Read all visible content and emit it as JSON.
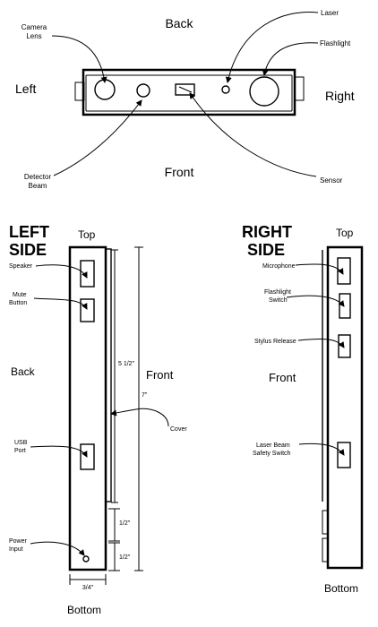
{
  "top_view": {
    "back": "Back",
    "front": "Front",
    "left": "Left",
    "right": "Right",
    "camera_lens": [
      "Camera",
      "Lens"
    ],
    "laser": "Laser",
    "flashlight": "Flashlight",
    "detector_beam": [
      "Detector",
      "Beam"
    ],
    "sensor": "Sensor"
  },
  "left_side": {
    "heading": [
      "LEFT",
      "SIDE"
    ],
    "top": "Top",
    "bottom": "Bottom",
    "back": "Back",
    "front": "Front",
    "speaker": "Speaker",
    "mute_button": [
      "Mute",
      "Button"
    ],
    "usb_port": [
      "USB",
      "Port"
    ],
    "power_input": [
      "Power",
      "Input"
    ],
    "cover": "Cover",
    "dim_5_half": "5 1/2\"",
    "dim_7": "7\"",
    "dim_half_1": "1/2\"",
    "dim_half_2": "1/2\"",
    "dim_3_4": "3/4\""
  },
  "right_side": {
    "heading": [
      "RIGHT",
      "SIDE"
    ],
    "top": "Top",
    "bottom": "Bottom",
    "front": "Front",
    "microphone": "Microphone",
    "flashlight_switch": [
      "Flashlight",
      "Switch"
    ],
    "stylus_release": "Stylus Release",
    "laser_safety": [
      "Laser Beam",
      "Safety Switch"
    ]
  }
}
